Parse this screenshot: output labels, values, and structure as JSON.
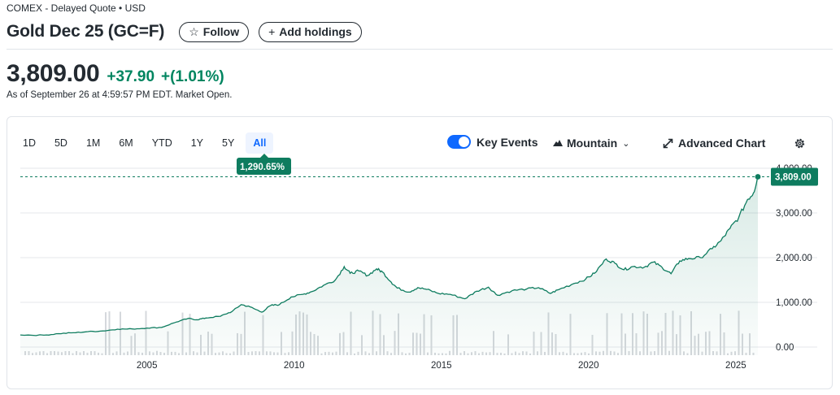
{
  "header": {
    "source": "COMEX - Delayed Quote • USD",
    "title": "Gold Dec 25 (GC=F)",
    "follow_label": "Follow",
    "add_holdings_label": "Add holdings"
  },
  "quote": {
    "price": "3,809.00",
    "change": "+37.90",
    "change_pct": "+(1.01%)",
    "as_of": "As of September 26 at 4:59:57 PM EDT. Market Open."
  },
  "toolbar": {
    "ranges": [
      "1D",
      "5D",
      "1M",
      "6M",
      "YTD",
      "1Y",
      "5Y",
      "All"
    ],
    "active_range": "All",
    "key_events_label": "Key Events",
    "key_events_on": true,
    "chart_type_label": "Mountain",
    "advanced_chart_label": "Advanced Chart"
  },
  "colors": {
    "positive": "#008560",
    "accent": "#0f69ff",
    "line": "#0e7c5f",
    "volume": "#d5d8dc"
  },
  "icons": {
    "follow": "star-icon",
    "add": "plus-icon",
    "chart_type": "mountain-icon",
    "advanced": "expand-icon",
    "settings": "gear-icon"
  },
  "chart_data": {
    "type": "area",
    "title": "",
    "xlabel": "",
    "ylabel": "",
    "x_ticks": [
      "2005",
      "2010",
      "2015",
      "2020",
      "2025"
    ],
    "y_ticks": [
      "0.00",
      "1,000.00",
      "2,000.00",
      "3,000.00",
      "4,000.00"
    ],
    "ylim": [
      0,
      4000
    ],
    "xlim": [
      2000.7,
      2025.75
    ],
    "grid": "horizontal",
    "last_price_label": "3,809.00",
    "period_return_label": "1,290.65%",
    "series": [
      {
        "values_x": [
          2000.7,
          2001.5,
          2002.0,
          2002.5,
          2003.0,
          2003.5,
          2004.0,
          2004.5,
          2005.0,
          2005.5,
          2006.0,
          2006.4,
          2006.7,
          2007.0,
          2007.5,
          2007.9,
          2008.2,
          2008.5,
          2008.9,
          2009.2,
          2009.5,
          2009.9,
          2010.3,
          2010.6,
          2011.0,
          2011.4,
          2011.7,
          2011.9,
          2012.2,
          2012.5,
          2012.8,
          2013.0,
          2013.3,
          2013.5,
          2013.9,
          2014.2,
          2014.5,
          2014.9,
          2015.3,
          2015.8,
          2016.2,
          2016.6,
          2016.9,
          2017.4,
          2017.9,
          2018.3,
          2018.7,
          2019.0,
          2019.5,
          2019.9,
          2020.2,
          2020.6,
          2020.9,
          2021.2,
          2021.5,
          2021.9,
          2022.2,
          2022.5,
          2022.8,
          2023.1,
          2023.4,
          2023.8,
          2024.2,
          2024.5,
          2024.8,
          2025.1,
          2025.4,
          2025.6,
          2025.75
        ],
        "values_y": [
          270,
          265,
          300,
          320,
          345,
          360,
          400,
          405,
          425,
          440,
          560,
          640,
          610,
          650,
          690,
          800,
          950,
          900,
          780,
          930,
          950,
          1120,
          1180,
          1240,
          1380,
          1500,
          1800,
          1650,
          1700,
          1600,
          1750,
          1680,
          1450,
          1320,
          1230,
          1330,
          1290,
          1200,
          1180,
          1080,
          1250,
          1340,
          1160,
          1260,
          1300,
          1330,
          1200,
          1290,
          1420,
          1520,
          1650,
          1970,
          1870,
          1730,
          1800,
          1790,
          1900,
          1780,
          1640,
          1930,
          1980,
          2000,
          2200,
          2380,
          2650,
          2900,
          3300,
          3450,
          3809
        ]
      }
    ]
  }
}
